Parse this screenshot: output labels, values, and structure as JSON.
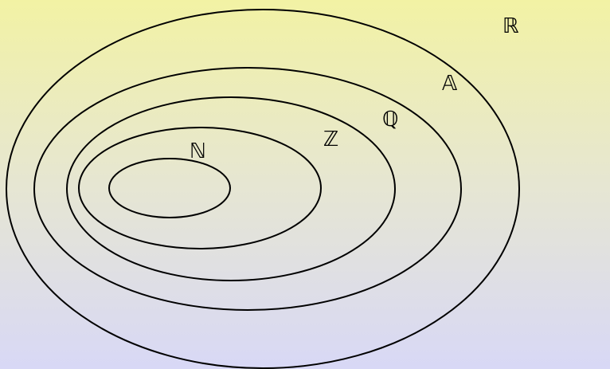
{
  "diagram": {
    "background": {
      "top_color": "#f2f2a4",
      "bottom_color": "#d8d8f6"
    },
    "stroke_color": "#000000",
    "sets": [
      {
        "id": "reals",
        "label": "ℝ"
      },
      {
        "id": "algebraic",
        "label": "𝔸"
      },
      {
        "id": "rationals",
        "label": "ℚ"
      },
      {
        "id": "integers",
        "label": "ℤ"
      },
      {
        "id": "naturals",
        "label": "ℕ"
      }
    ]
  }
}
